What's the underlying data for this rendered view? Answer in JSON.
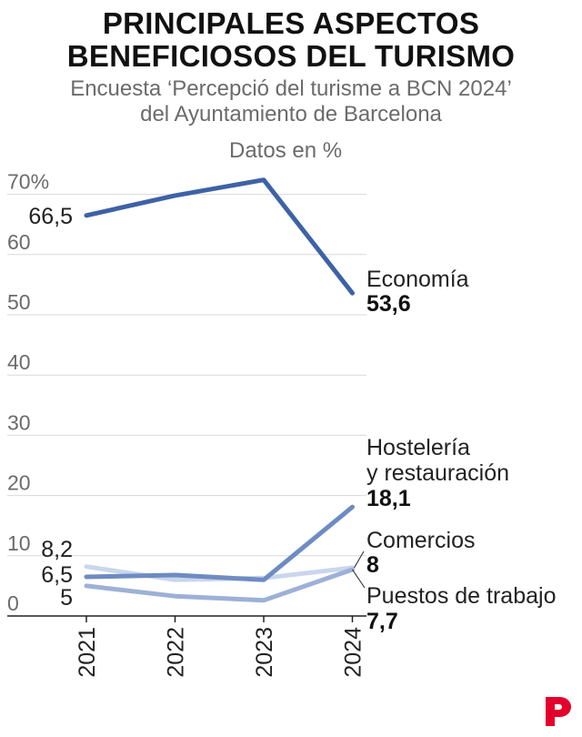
{
  "title_line1": "PRINCIPALES ASPECTOS",
  "title_line2": "BENEFICIOSOS DEL TURISMO",
  "subtitle_line1": "Encuesta ‘Percepció del turisme a BCN 2024’",
  "subtitle_line2": "del Ayuntamiento de Barcelona",
  "units": "Datos en %",
  "colors": {
    "economia": "#3d62a6",
    "hosteleria": "#6e8bc2",
    "comercios": "#c9d6ec",
    "puestos": "#9db0d6",
    "grid": "#d9d9d9",
    "axis": "#222222",
    "logo": "#e4002b"
  },
  "chart_data": {
    "type": "line",
    "categories": [
      "2021",
      "2022",
      "2023",
      "2024"
    ],
    "ylim": [
      0,
      70
    ],
    "yticks": [
      {
        "value": 0,
        "label": "0"
      },
      {
        "value": 10,
        "label": "10"
      },
      {
        "value": 20,
        "label": "20"
      },
      {
        "value": 30,
        "label": "30"
      },
      {
        "value": 40,
        "label": "40"
      },
      {
        "value": 50,
        "label": "50"
      },
      {
        "value": 60,
        "label": "60"
      },
      {
        "value": 70,
        "label": "70%"
      }
    ],
    "series": [
      {
        "key": "economia",
        "name": "Economía",
        "values": [
          66.5,
          69.8,
          72.4,
          53.6
        ],
        "start_label": "66,5",
        "end_label": "53,6"
      },
      {
        "key": "hosteleria",
        "name": "Hostelería y restauración",
        "name_lines": [
          "Hostelería",
          "y restauración"
        ],
        "values": [
          6.5,
          6.8,
          6.0,
          18.1
        ],
        "start_label": "6,5",
        "end_label": "18,1"
      },
      {
        "key": "comercios",
        "name": "Comercios",
        "values": [
          8.2,
          6.0,
          6.3,
          8.0
        ],
        "start_label": "8,2",
        "end_label": "8"
      },
      {
        "key": "puestos",
        "name": "Puestos de trabajo",
        "values": [
          5.0,
          3.3,
          2.6,
          7.7
        ],
        "start_label": "5",
        "end_label": "7,7"
      }
    ]
  }
}
